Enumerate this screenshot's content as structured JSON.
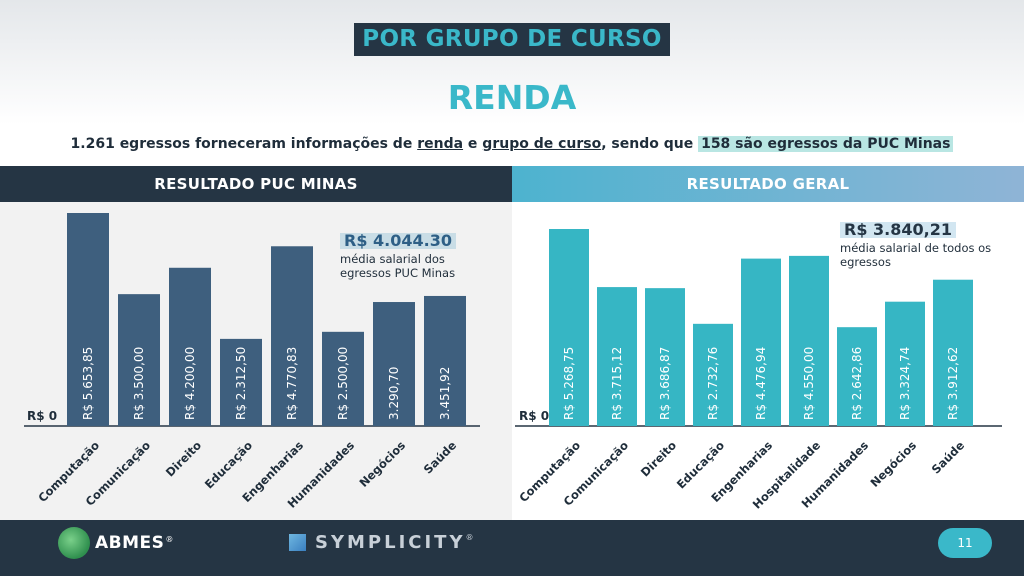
{
  "header": {
    "kicker": "POR GRUPO DE CURSO",
    "title": "RENDA",
    "subtitle_part1": "1.261 egressos forneceram informações de ",
    "subtitle_link1": "renda",
    "subtitle_part2": " e ",
    "subtitle_link2": "grupo de curso",
    "subtitle_part3": ", sendo que ",
    "subtitle_highlight": "158 são egressos da PUC Minas"
  },
  "panels": {
    "left_title": "RESULTADO PUC MINAS",
    "right_title": "RESULTADO GERAL"
  },
  "callouts": {
    "left_value": "R$ 4.044.30",
    "left_text": "média salarial dos egressos PUC Minas",
    "right_value": "R$ 3.840,21",
    "right_text": "média salarial de todos os egressos"
  },
  "chart_data": [
    {
      "type": "bar",
      "name": "RESULTADO PUC MINAS",
      "color": "#3e5f7e",
      "categories": [
        "Computação",
        "Comunicação",
        "Direito",
        "Educação",
        "Engenharias",
        "Humanidades",
        "Negócios",
        "Saúde"
      ],
      "values": [
        5653.85,
        3500.0,
        4200.0,
        2312.5,
        4770.83,
        2500.0,
        3290.7,
        3451.92
      ],
      "labels": [
        "R$ 5.653,85",
        "R$ 3.500,00",
        "R$ 4.200,00",
        "R$ 2.312,50",
        "R$ 4.770,83",
        "R$ 2.500,00",
        "3.290,70",
        "3.451,92"
      ],
      "ylabel_zero": "R$ 0",
      "ylim": [
        0,
        5653.85
      ]
    },
    {
      "type": "bar",
      "name": "RESULTADO GERAL",
      "color": "#36b6c4",
      "categories": [
        "Computação",
        "Comunicação",
        "Direito",
        "Educação",
        "Engenharias",
        "Hospitalidade",
        "Humanidades",
        "Negócios",
        "Saúde"
      ],
      "values": [
        5268.75,
        3715.12,
        3686.87,
        2732.76,
        4476.94,
        4550.0,
        2642.86,
        3324.74,
        3912.62
      ],
      "labels": [
        "R$ 5.268,75",
        "R$ 3.715,12",
        "R$ 3.686,87",
        "R$ 2.732,76",
        "R$ 4.476,94",
        "R$ 4.550,00",
        "R$ 2.642,86",
        "R$ 3.324,74",
        "R$ 3.912,62"
      ],
      "ylabel_zero": "R$ 0",
      "ylim": [
        0,
        5268.75
      ]
    }
  ],
  "footer": {
    "abmes": "ABMES",
    "abmes_mark": "®",
    "symplicity": "SYMPLICITY",
    "symplicity_mark": "®",
    "page": "11"
  }
}
